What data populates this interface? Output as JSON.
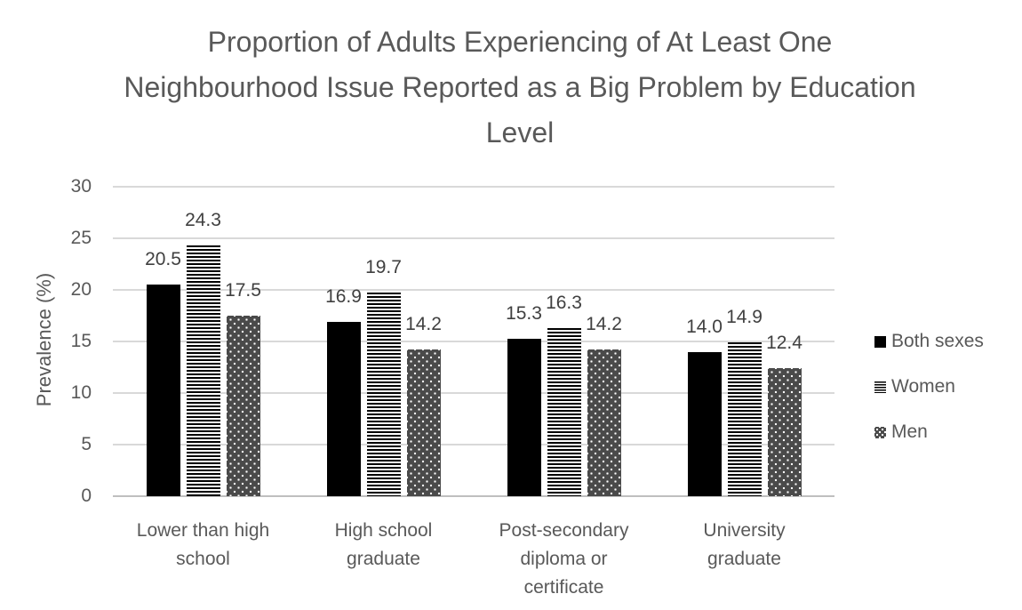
{
  "chart_data": {
    "type": "bar",
    "title": "Proportion of Adults Experiencing of At Least One Neighbourhood Issue Reported as a Big Problem by Education Level",
    "xlabel": "",
    "ylabel": "Prevalence (%)",
    "ylim": [
      0,
      30
    ],
    "yticks": [
      0,
      5,
      10,
      15,
      20,
      25,
      30
    ],
    "grid": true,
    "legend_position": "right",
    "data_labels": true,
    "data_label_format": "one_decimal",
    "categories": [
      "Lower than high school",
      "High school graduate",
      "Post-secondary diploma or certificate",
      "University graduate"
    ],
    "series": [
      {
        "name": "Both sexes",
        "pattern": "solid-black",
        "values": [
          20.5,
          16.9,
          15.3,
          14.0
        ]
      },
      {
        "name": "Women",
        "pattern": "horizontal-stripes",
        "values": [
          24.3,
          19.7,
          16.3,
          14.9
        ]
      },
      {
        "name": "Men",
        "pattern": "dotted-gray",
        "values": [
          17.5,
          14.2,
          14.2,
          12.4
        ]
      }
    ],
    "colors": {
      "text": "#595959",
      "data_label_text": "#404040",
      "gridline": "#d9d9d9",
      "axis_line": "#bfbfbf",
      "both_sexes_fill": "#000000",
      "women_stripe": "#000000",
      "men_fill": "#4a4a4a",
      "background": "#ffffff"
    }
  }
}
